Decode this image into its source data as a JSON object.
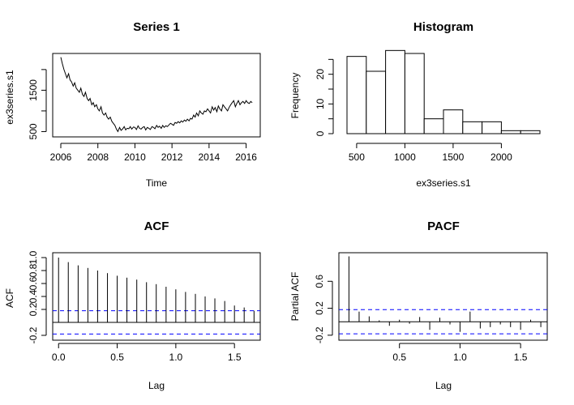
{
  "chart_data": [
    {
      "type": "line",
      "title": "Series 1",
      "xlabel": "Time",
      "ylabel": "ex3series.s1",
      "xlim": [
        2006,
        2016.5
      ],
      "ylim": [
        450,
        2350
      ],
      "x_ticks": [
        "2006",
        "2008",
        "2010",
        "2012",
        "2014",
        "2016"
      ],
      "y_ticks": [
        "500",
        "1500"
      ],
      "series": [
        {
          "x": [
            2006.0,
            2006.08,
            2006.17,
            2006.25,
            2006.33,
            2006.42,
            2006.5,
            2006.58,
            2006.67,
            2006.75,
            2006.83,
            2006.92,
            2007.0,
            2007.08,
            2007.17,
            2007.25,
            2007.33,
            2007.42,
            2007.5,
            2007.58,
            2007.67,
            2007.75,
            2007.83,
            2007.92,
            2008.0,
            2008.08,
            2008.17,
            2008.25,
            2008.33,
            2008.42,
            2008.5,
            2008.58,
            2008.67,
            2008.75,
            2008.83,
            2008.92,
            2009.0,
            2009.08,
            2009.17,
            2009.25,
            2009.33,
            2009.42,
            2009.5,
            2009.58,
            2009.67,
            2009.75,
            2009.83,
            2009.92,
            2010.0,
            2010.08,
            2010.17,
            2010.25,
            2010.33,
            2010.42,
            2010.5,
            2010.58,
            2010.67,
            2010.75,
            2010.83,
            2010.92,
            2011.0,
            2011.08,
            2011.17,
            2011.25,
            2011.33,
            2011.42,
            2011.5,
            2011.58,
            2011.67,
            2011.75,
            2011.83,
            2011.92,
            2012.0,
            2012.08,
            2012.17,
            2012.25,
            2012.33,
            2012.42,
            2012.5,
            2012.58,
            2012.67,
            2012.75,
            2012.83,
            2012.92,
            2013.0,
            2013.08,
            2013.17,
            2013.25,
            2013.33,
            2013.42,
            2013.5,
            2013.58,
            2013.67,
            2013.75,
            2013.83,
            2013.92,
            2014.0,
            2014.08,
            2014.17,
            2014.25,
            2014.33,
            2014.42,
            2014.5,
            2014.58,
            2014.67,
            2014.75,
            2014.83,
            2014.92,
            2015.0,
            2015.08,
            2015.17,
            2015.25,
            2015.33,
            2015.42,
            2015.5,
            2015.58,
            2015.67,
            2015.75,
            2015.83,
            2015.92,
            2016.0,
            2016.08,
            2016.17,
            2016.25,
            2016.33
          ],
          "y": [
            2300,
            2150,
            2000,
            1900,
            1800,
            1900,
            1750,
            1700,
            1600,
            1680,
            1550,
            1500,
            1450,
            1550,
            1400,
            1350,
            1450,
            1300,
            1250,
            1300,
            1150,
            1200,
            1100,
            1150,
            1050,
            1000,
            1100,
            950,
            900,
            950,
            850,
            800,
            850,
            750,
            700,
            650,
            560,
            500,
            600,
            530,
            560,
            620,
            540,
            580,
            570,
            620,
            560,
            610,
            600,
            550,
            640,
            580,
            560,
            600,
            620,
            540,
            600,
            580,
            550,
            620,
            600,
            570,
            650,
            600,
            630,
            580,
            650,
            600,
            640,
            620,
            660,
            700,
            680,
            650,
            720,
            700,
            740,
            710,
            760,
            730,
            780,
            750,
            800,
            760,
            820,
            800,
            900,
            850,
            950,
            880,
            1000,
            950,
            920,
            1000,
            980,
            1050,
            1000,
            950,
            1100,
            1020,
            1080,
            980,
            1120,
            1050,
            1000,
            1150,
            1100,
            1050,
            1000,
            1080,
            1150,
            1200,
            1250,
            1100,
            1180,
            1250,
            1150,
            1200,
            1230,
            1180,
            1250,
            1200,
            1180,
            1230,
            1200
          ]
        }
      ]
    },
    {
      "type": "bar",
      "title": "Histogram",
      "xlabel": "ex3series.s1",
      "ylabel": "Frequency",
      "xlim": [
        400,
        2400
      ],
      "ylim": [
        0,
        27
      ],
      "x_ticks": [
        "500",
        "1000",
        "1500",
        "2000"
      ],
      "y_ticks": [
        "0",
        "10",
        "20"
      ],
      "bins": [
        [
          400,
          600
        ],
        [
          600,
          800
        ],
        [
          800,
          1000
        ],
        [
          1000,
          1200
        ],
        [
          1200,
          1400
        ],
        [
          1400,
          1600
        ],
        [
          1600,
          1800
        ],
        [
          1800,
          2000
        ],
        [
          2000,
          2200
        ],
        [
          2200,
          2400
        ]
      ],
      "values": [
        26,
        21,
        28,
        27,
        5,
        8,
        4,
        4,
        1,
        1
      ]
    },
    {
      "type": "bar",
      "title": "ACF",
      "xlabel": "Lag",
      "ylabel": "ACF",
      "xlim": [
        -0.05,
        1.72
      ],
      "ylim": [
        -0.25,
        1.05
      ],
      "x_ticks": [
        "0.0",
        "0.5",
        "1.0",
        "1.5"
      ],
      "y_ticks": [
        "-0.2",
        "0.2",
        "0.6",
        "1.0"
      ],
      "y_tick_values": [
        -0.2,
        0.2,
        0.6,
        1.0
      ],
      "y_minor_tick_labels": [
        "0.4",
        "0.8"
      ],
      "lags": [
        0.0,
        0.083,
        0.167,
        0.25,
        0.333,
        0.417,
        0.5,
        0.583,
        0.667,
        0.75,
        0.833,
        0.917,
        1.0,
        1.083,
        1.167,
        1.25,
        1.333,
        1.417,
        1.5,
        1.583,
        1.667
      ],
      "values": [
        1.0,
        0.93,
        0.88,
        0.84,
        0.8,
        0.76,
        0.72,
        0.69,
        0.66,
        0.62,
        0.59,
        0.55,
        0.51,
        0.47,
        0.44,
        0.4,
        0.37,
        0.33,
        0.26,
        0.23,
        0.18
      ],
      "ci": 0.18
    },
    {
      "type": "bar",
      "title": "PACF",
      "xlabel": "Lag",
      "ylabel": "Partial ACF",
      "xlim": [
        0.0,
        1.72
      ],
      "ylim": [
        -0.25,
        1.0
      ],
      "x_ticks": [
        "0.5",
        "1.0",
        "1.5"
      ],
      "y_ticks": [
        "-0.2",
        "0.2",
        "0.6"
      ],
      "y_tick_values": [
        -0.2,
        0.2,
        0.6
      ],
      "lags": [
        0.083,
        0.167,
        0.25,
        0.333,
        0.417,
        0.5,
        0.583,
        0.667,
        0.75,
        0.833,
        0.917,
        1.0,
        1.083,
        1.167,
        1.25,
        1.333,
        1.417,
        1.5,
        1.583,
        1.667
      ],
      "values": [
        0.97,
        0.15,
        0.08,
        0.02,
        -0.06,
        0.03,
        -0.03,
        0.07,
        -0.12,
        0.06,
        -0.04,
        -0.15,
        0.15,
        -0.1,
        -0.08,
        -0.04,
        -0.08,
        -0.12,
        0.03,
        -0.08
      ],
      "ci": 0.18
    }
  ],
  "colors": {
    "ci_line": "#0000ff",
    "axis": "#000000",
    "background": "#ffffff"
  }
}
